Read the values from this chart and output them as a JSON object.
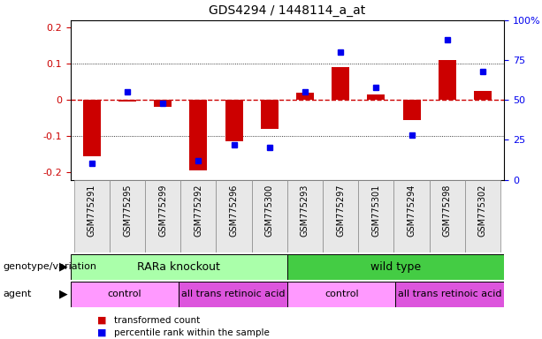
{
  "title": "GDS4294 / 1448114_a_at",
  "samples": [
    "GSM775291",
    "GSM775295",
    "GSM775299",
    "GSM775292",
    "GSM775296",
    "GSM775300",
    "GSM775293",
    "GSM775297",
    "GSM775301",
    "GSM775294",
    "GSM775298",
    "GSM775302"
  ],
  "red_values": [
    -0.155,
    -0.005,
    -0.02,
    -0.195,
    -0.115,
    -0.08,
    0.02,
    0.092,
    0.015,
    -0.055,
    0.11,
    0.025
  ],
  "blue_values_pct": [
    10,
    55,
    48,
    12,
    22,
    20,
    55,
    80,
    58,
    28,
    88,
    68
  ],
  "ylim_left": [
    -0.22,
    0.22
  ],
  "ylim_right": [
    0,
    100
  ],
  "yticks_left": [
    -0.2,
    -0.1,
    0.0,
    0.1,
    0.2
  ],
  "yticks_right": [
    0,
    25,
    50,
    75,
    100
  ],
  "right_tick_labels": [
    "0",
    "25",
    "50",
    "75",
    "100%"
  ],
  "genotype_groups": [
    {
      "label": "RARa knockout",
      "start": 0,
      "end": 6,
      "color": "#AAFFAA"
    },
    {
      "label": "wild type",
      "start": 6,
      "end": 12,
      "color": "#44CC44"
    }
  ],
  "agent_groups": [
    {
      "label": "control",
      "start": 0,
      "end": 3,
      "color": "#FF99FF"
    },
    {
      "label": "all trans retinoic acid",
      "start": 3,
      "end": 6,
      "color": "#DD55DD"
    },
    {
      "label": "control",
      "start": 6,
      "end": 9,
      "color": "#FF99FF"
    },
    {
      "label": "all trans retinoic acid",
      "start": 9,
      "end": 12,
      "color": "#DD55DD"
    }
  ],
  "legend_red": "transformed count",
  "legend_blue": "percentile rank within the sample",
  "red_color": "#CC0000",
  "blue_color": "#0000EE",
  "zero_line_color": "#CC0000",
  "title_fontsize": 10,
  "bar_width": 0.5,
  "blue_marker_size": 4,
  "label_fontsize": 7,
  "row_label_fontsize": 8,
  "genotype_fontsize": 9,
  "agent_fontsize": 8
}
